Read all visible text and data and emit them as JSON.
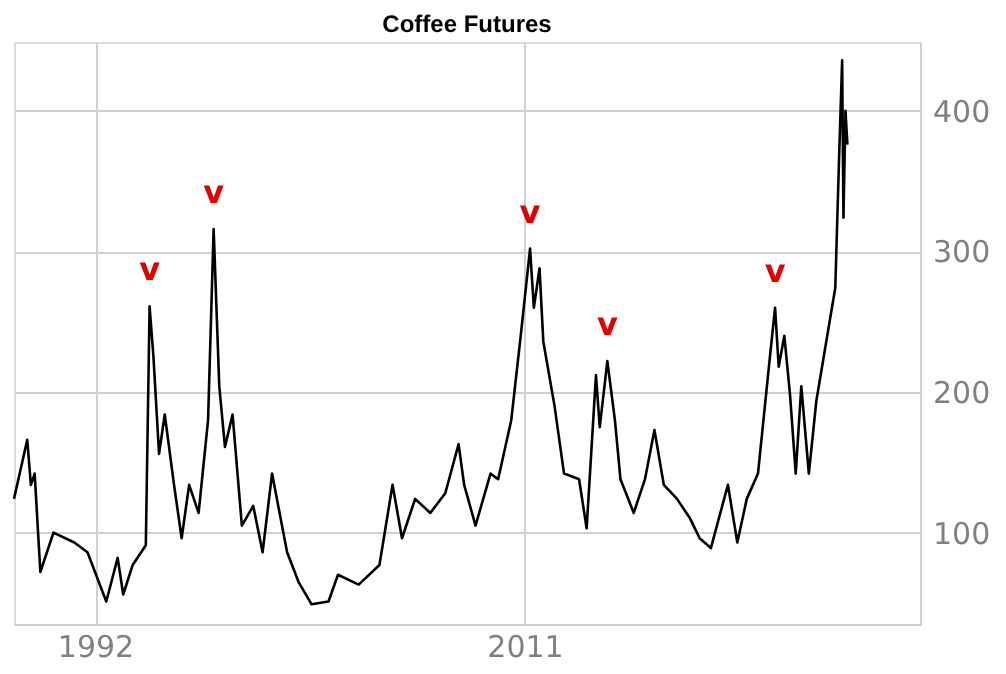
{
  "chart_data": {
    "type": "line",
    "title": "Coffee Futures",
    "x": [
      "1988-06",
      "1989-01",
      "1989-03",
      "1989-05",
      "1989-08",
      "1990-03",
      "1991-02",
      "1991-09",
      "1992-07",
      "1993-01",
      "1993-04",
      "1993-09",
      "1994-04",
      "1994-06",
      "1994-08",
      "1994-11",
      "1995-02",
      "1995-07",
      "1995-11",
      "1996-03",
      "1996-08",
      "1997-01",
      "1997-04",
      "1997-07",
      "1997-10",
      "1998-02",
      "1998-07",
      "1999-01",
      "1999-06",
      "1999-11",
      "2000-07",
      "2001-01",
      "2001-08",
      "2002-05",
      "2002-10",
      "2003-09",
      "2004-08",
      "2005-03",
      "2005-08",
      "2006-03",
      "2006-11",
      "2007-07",
      "2008-02",
      "2008-05",
      "2008-11",
      "2009-07",
      "2009-11",
      "2010-06",
      "2010-11",
      "2011-04",
      "2011-06",
      "2011-09",
      "2011-11",
      "2012-05",
      "2012-10",
      "2013-06",
      "2013-10",
      "2014-03",
      "2014-05",
      "2014-09",
      "2015-01",
      "2015-04",
      "2015-11",
      "2016-05",
      "2016-10",
      "2017-03",
      "2017-10",
      "2018-05",
      "2018-10",
      "2019-04",
      "2020-01",
      "2020-06",
      "2020-11",
      "2021-05",
      "2021-10",
      "2022-02",
      "2022-04",
      "2022-07",
      "2022-10",
      "2023-01",
      "2023-04",
      "2023-08",
      "2023-12",
      "2024-04",
      "2024-07",
      "2024-10",
      "2024-12",
      "2025-01-20",
      "2025-02-10",
      "2025-03-15",
      "2025-04-15"
    ],
    "series": [
      {
        "color": "#000000",
        "values": [
          124,
          166,
          134,
          142,
          72,
          100,
          93,
          86,
          51,
          82,
          56,
          77,
          91,
          261,
          226,
          156,
          184,
          134,
          96,
          134,
          114,
          180,
          316,
          204,
          161,
          184,
          105,
          119,
          86,
          142,
          86,
          65,
          49,
          51,
          70,
          63,
          77,
          134,
          96,
          124,
          114,
          128,
          163,
          134,
          105,
          142,
          138,
          180,
          240,
          302,
          260,
          288,
          236,
          190,
          142,
          138,
          103,
          212,
          175,
          222,
          180,
          138,
          114,
          138,
          173,
          134,
          124,
          110,
          96,
          89,
          134,
          93,
          124,
          142,
          208,
          260,
          218,
          240,
          198,
          142,
          204,
          142,
          194,
          226,
          250,
          274,
          366,
          436,
          324,
          400,
          376
        ]
      }
    ],
    "xlim": [
      "1988-06",
      "2028-07"
    ],
    "xticks": [
      "1992",
      "2011"
    ],
    "ylim": [
      35,
      449
    ],
    "yticks": [
      100,
      200,
      300,
      400
    ],
    "grid": true,
    "annotations": [
      {
        "text": "v",
        "x": "1994-06",
        "y": 261
      },
      {
        "text": "v",
        "x": "1997-04",
        "y": 316
      },
      {
        "text": "v",
        "x": "2011-04",
        "y": 302
      },
      {
        "text": "v",
        "x": "2014-09",
        "y": 222
      },
      {
        "text": "v",
        "x": "2022-02",
        "y": 260
      }
    ]
  }
}
